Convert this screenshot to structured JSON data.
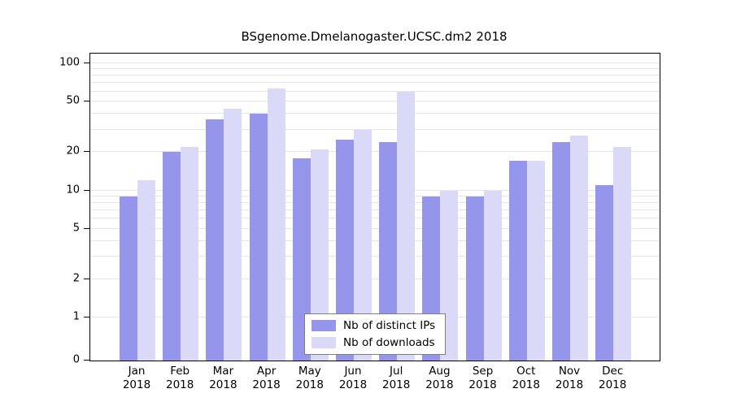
{
  "title": "BSgenome.Dmelanogaster.UCSC.dm2 2018",
  "chart_data": {
    "type": "bar",
    "scale": "log",
    "title": "BSgenome.Dmelanogaster.UCSC.dm2 2018",
    "categories": [
      "Jan",
      "Feb",
      "Mar",
      "Apr",
      "May",
      "Jun",
      "Jul",
      "Aug",
      "Sep",
      "Oct",
      "Nov",
      "Dec"
    ],
    "year": "2018",
    "series": [
      {
        "name": "Nb of distinct IPs",
        "color": "#9595ec",
        "values": [
          9,
          20,
          36,
          40,
          18,
          25,
          24,
          9,
          9,
          17,
          24,
          11
        ]
      },
      {
        "name": "Nb of downloads",
        "color": "#dadaf8",
        "values": [
          12,
          22,
          44,
          63,
          21,
          30,
          60,
          10,
          10,
          17,
          27,
          22
        ]
      }
    ],
    "yticks": [
      0,
      1,
      2,
      5,
      10,
      20,
      50,
      100
    ],
    "ylim": [
      0,
      100
    ],
    "xlabel": "",
    "ylabel": "",
    "grid": true,
    "legend_position": "inside-bottom-center"
  }
}
